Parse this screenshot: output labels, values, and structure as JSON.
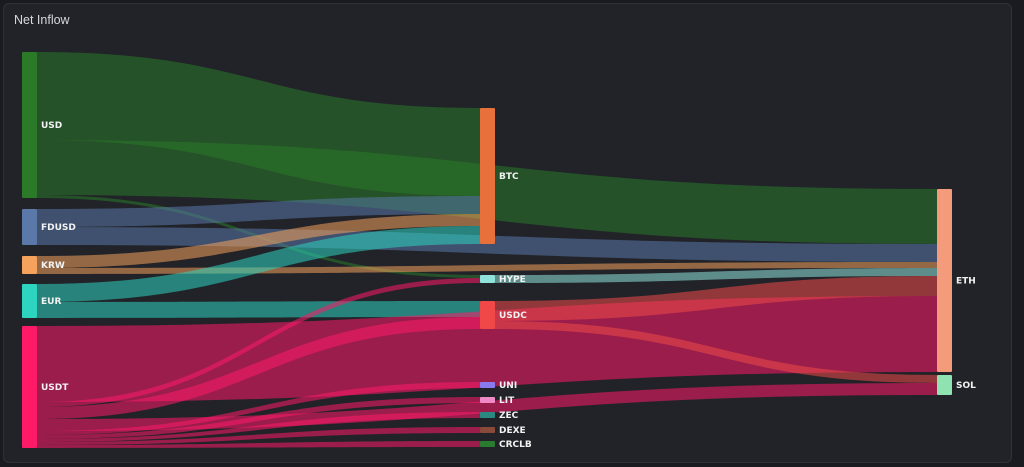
{
  "panel": {
    "title": "Net Inflow"
  },
  "chart_data": {
    "type": "sankey",
    "title": "Net Inflow",
    "nodes": [
      {
        "id": "USD",
        "label": "USD",
        "color": "#2a7a28"
      },
      {
        "id": "FDUSD",
        "label": "FDUSD",
        "color": "#5a78a8"
      },
      {
        "id": "KRW",
        "label": "KRW",
        "color": "#f5a35c"
      },
      {
        "id": "EUR",
        "label": "EUR",
        "color": "#2dd4bf"
      },
      {
        "id": "USDT",
        "label": "USDT",
        "color": "#ff1a68"
      },
      {
        "id": "BTC",
        "label": "BTC",
        "color": "#e8703a"
      },
      {
        "id": "HYPE",
        "label": "HYPE",
        "color": "#8fe3da"
      },
      {
        "id": "USDC",
        "label": "USDC",
        "color": "#f04848"
      },
      {
        "id": "UNI",
        "label": "UNI",
        "color": "#8a7af0"
      },
      {
        "id": "LIT",
        "label": "LIT",
        "color": "#f08ac6"
      },
      {
        "id": "ZEC",
        "label": "ZEC",
        "color": "#2a8a82"
      },
      {
        "id": "DEXE",
        "label": "DEXE",
        "color": "#8a4a3a"
      },
      {
        "id": "CRCLB",
        "label": "CRCLB",
        "color": "#2a7a30"
      },
      {
        "id": "ETH",
        "label": "ETH",
        "color": "#f39b7b"
      },
      {
        "id": "SOL",
        "label": "SOL",
        "color": "#8fe3b0"
      }
    ],
    "links": [
      {
        "source": "USD",
        "target": "BTC",
        "value": 88
      },
      {
        "source": "USD",
        "target": "ETH",
        "value": 55
      },
      {
        "source": "USD",
        "target": "HYPE",
        "value": 3
      },
      {
        "source": "FDUSD",
        "target": "BTC",
        "value": 18
      },
      {
        "source": "FDUSD",
        "target": "ETH",
        "value": 18
      },
      {
        "source": "KRW",
        "target": "BTC",
        "value": 12
      },
      {
        "source": "KRW",
        "target": "ETH",
        "value": 6
      },
      {
        "source": "EUR",
        "target": "BTC",
        "value": 18
      },
      {
        "source": "EUR",
        "target": "USDC",
        "value": 16
      },
      {
        "source": "USDT",
        "target": "HYPE",
        "value": 5
      },
      {
        "source": "USDT",
        "target": "USDC",
        "value": 12
      },
      {
        "source": "USDT",
        "target": "ETH",
        "value": 76
      },
      {
        "source": "USDT",
        "target": "SOL",
        "value": 12
      },
      {
        "source": "USDT",
        "target": "UNI",
        "value": 4
      },
      {
        "source": "USDT",
        "target": "LIT",
        "value": 4
      },
      {
        "source": "USDT",
        "target": "ZEC",
        "value": 3
      },
      {
        "source": "USDT",
        "target": "DEXE",
        "value": 3
      },
      {
        "source": "USDT",
        "target": "CRCLB",
        "value": 3
      },
      {
        "source": "HYPE",
        "target": "ETH",
        "value": 8
      },
      {
        "source": "USDC",
        "target": "ETH",
        "value": 20
      },
      {
        "source": "USDC",
        "target": "SOL",
        "value": 8
      }
    ]
  }
}
